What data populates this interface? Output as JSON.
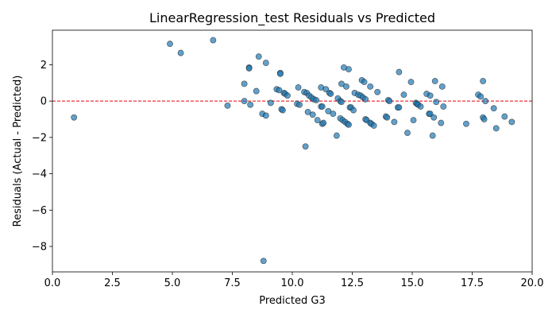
{
  "chart_data": {
    "type": "scatter",
    "title": "LinearRegression_test Residuals vs Predicted",
    "xlabel": "Predicted G3",
    "ylabel": "Residuals (Actual - Predicted)",
    "xlim": [
      0,
      20
    ],
    "ylim": [
      -9.4,
      3.9
    ],
    "xticks": [
      0.0,
      2.5,
      5.0,
      7.5,
      10.0,
      12.5,
      15.0,
      17.5,
      20.0
    ],
    "xtick_labels": [
      "0.0",
      "2.5",
      "5.0",
      "7.5",
      "10.0",
      "12.5",
      "15.0",
      "17.5",
      "20.0"
    ],
    "yticks": [
      -8,
      -6,
      -4,
      -2,
      0,
      2
    ],
    "ytick_labels": [
      "−8",
      "−6",
      "−4",
      "−2",
      "0",
      "2"
    ],
    "grid": false,
    "reference_line": {
      "y": 0,
      "style": "dashed",
      "color": "#e8000b"
    },
    "marker_color": "#1f77b4",
    "points": [
      {
        "x": 0.9,
        "y": -0.9
      },
      {
        "x": 4.9,
        "y": 3.15
      },
      {
        "x": 5.35,
        "y": 2.65
      },
      {
        "x": 6.7,
        "y": 3.35
      },
      {
        "x": 7.3,
        "y": -0.25
      },
      {
        "x": 8.0,
        "y": 0.95
      },
      {
        "x": 8.0,
        "y": 0.0
      },
      {
        "x": 8.2,
        "y": 1.85
      },
      {
        "x": 8.2,
        "y": 1.8
      },
      {
        "x": 8.25,
        "y": -0.2
      },
      {
        "x": 8.5,
        "y": 0.55
      },
      {
        "x": 8.6,
        "y": 2.45
      },
      {
        "x": 8.75,
        "y": -0.7
      },
      {
        "x": 8.8,
        "y": -8.8
      },
      {
        "x": 8.9,
        "y": 2.1
      },
      {
        "x": 8.9,
        "y": -0.8
      },
      {
        "x": 9.1,
        "y": -0.1
      },
      {
        "x": 9.35,
        "y": 0.65
      },
      {
        "x": 9.45,
        "y": 0.6
      },
      {
        "x": 9.5,
        "y": 1.55
      },
      {
        "x": 9.5,
        "y": 1.5
      },
      {
        "x": 9.55,
        "y": -0.45
      },
      {
        "x": 9.6,
        "y": -0.5
      },
      {
        "x": 9.65,
        "y": 0.45
      },
      {
        "x": 9.7,
        "y": 0.4
      },
      {
        "x": 9.8,
        "y": 0.3
      },
      {
        "x": 10.2,
        "y": -0.15
      },
      {
        "x": 10.25,
        "y": 0.75
      },
      {
        "x": 10.3,
        "y": -0.2
      },
      {
        "x": 10.5,
        "y": 0.5
      },
      {
        "x": 10.55,
        "y": -2.5
      },
      {
        "x": 10.6,
        "y": 0.45
      },
      {
        "x": 10.65,
        "y": -0.6
      },
      {
        "x": 10.7,
        "y": 0.3
      },
      {
        "x": 10.8,
        "y": 0.2
      },
      {
        "x": 10.85,
        "y": -0.75
      },
      {
        "x": 10.9,
        "y": 0.1
      },
      {
        "x": 11.0,
        "y": 0.05
      },
      {
        "x": 11.05,
        "y": -1.05
      },
      {
        "x": 11.2,
        "y": 0.75
      },
      {
        "x": 11.2,
        "y": -0.3
      },
      {
        "x": 11.25,
        "y": -0.3
      },
      {
        "x": 11.25,
        "y": -1.25
      },
      {
        "x": 11.3,
        "y": -1.2
      },
      {
        "x": 11.4,
        "y": 0.65
      },
      {
        "x": 11.5,
        "y": -0.55
      },
      {
        "x": 11.55,
        "y": 0.45
      },
      {
        "x": 11.6,
        "y": 0.4
      },
      {
        "x": 11.7,
        "y": -0.7
      },
      {
        "x": 11.85,
        "y": -1.9
      },
      {
        "x": 11.9,
        "y": 0.15
      },
      {
        "x": 12.0,
        "y": 0.0
      },
      {
        "x": 12.0,
        "y": -0.95
      },
      {
        "x": 12.05,
        "y": 0.95
      },
      {
        "x": 12.05,
        "y": -0.05
      },
      {
        "x": 12.1,
        "y": -1.05
      },
      {
        "x": 12.15,
        "y": 1.85
      },
      {
        "x": 12.2,
        "y": -1.15
      },
      {
        "x": 12.25,
        "y": 0.8
      },
      {
        "x": 12.3,
        "y": -1.25
      },
      {
        "x": 12.35,
        "y": 1.75
      },
      {
        "x": 12.35,
        "y": -1.3
      },
      {
        "x": 12.4,
        "y": -0.35
      },
      {
        "x": 12.45,
        "y": -0.35
      },
      {
        "x": 12.55,
        "y": -0.5
      },
      {
        "x": 12.6,
        "y": 0.45
      },
      {
        "x": 12.75,
        "y": 0.35
      },
      {
        "x": 12.85,
        "y": 0.3
      },
      {
        "x": 12.9,
        "y": 1.15
      },
      {
        "x": 12.95,
        "y": 0.2
      },
      {
        "x": 13.0,
        "y": 1.05
      },
      {
        "x": 13.05,
        "y": 0.1
      },
      {
        "x": 13.05,
        "y": -1.0
      },
      {
        "x": 13.1,
        "y": -1.05
      },
      {
        "x": 13.25,
        "y": 0.8
      },
      {
        "x": 13.25,
        "y": -1.2
      },
      {
        "x": 13.3,
        "y": -1.25
      },
      {
        "x": 13.4,
        "y": -1.35
      },
      {
        "x": 13.55,
        "y": 0.5
      },
      {
        "x": 13.9,
        "y": -0.85
      },
      {
        "x": 13.95,
        "y": -0.9
      },
      {
        "x": 14.0,
        "y": 0.05
      },
      {
        "x": 14.05,
        "y": 0.0
      },
      {
        "x": 14.25,
        "y": -1.15
      },
      {
        "x": 14.4,
        "y": -0.35
      },
      {
        "x": 14.45,
        "y": 1.6
      },
      {
        "x": 14.45,
        "y": -0.35
      },
      {
        "x": 14.65,
        "y": 0.35
      },
      {
        "x": 14.8,
        "y": -1.75
      },
      {
        "x": 14.95,
        "y": 1.05
      },
      {
        "x": 15.05,
        "y": -1.05
      },
      {
        "x": 15.15,
        "y": -0.1
      },
      {
        "x": 15.2,
        "y": -0.15
      },
      {
        "x": 15.25,
        "y": -0.2
      },
      {
        "x": 15.35,
        "y": -0.3
      },
      {
        "x": 15.6,
        "y": 0.4
      },
      {
        "x": 15.7,
        "y": -0.7
      },
      {
        "x": 15.75,
        "y": 0.3
      },
      {
        "x": 15.75,
        "y": -0.7
      },
      {
        "x": 15.85,
        "y": -1.9
      },
      {
        "x": 15.9,
        "y": -0.9
      },
      {
        "x": 15.95,
        "y": 1.1
      },
      {
        "x": 16.0,
        "y": -0.05
      },
      {
        "x": 16.2,
        "y": -1.2
      },
      {
        "x": 16.25,
        "y": 0.8
      },
      {
        "x": 16.3,
        "y": -0.3
      },
      {
        "x": 17.25,
        "y": -1.25
      },
      {
        "x": 17.75,
        "y": 0.35
      },
      {
        "x": 17.85,
        "y": 0.25
      },
      {
        "x": 17.95,
        "y": -0.9
      },
      {
        "x": 17.95,
        "y": 1.1
      },
      {
        "x": 18.0,
        "y": -1.0
      },
      {
        "x": 18.05,
        "y": 0.0
      },
      {
        "x": 18.4,
        "y": -0.4
      },
      {
        "x": 18.5,
        "y": -1.5
      },
      {
        "x": 18.85,
        "y": -0.85
      },
      {
        "x": 19.15,
        "y": -1.15
      }
    ]
  }
}
